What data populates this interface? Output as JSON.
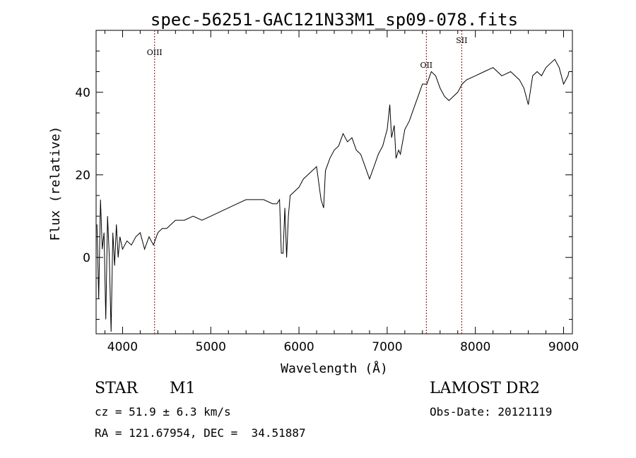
{
  "chart_data": {
    "type": "line",
    "title": "spec-56251-GAC121N33M1_sp09-078.fits",
    "xlabel": "Wavelength (Å)",
    "ylabel": "Flux (relative)",
    "xlim": [
      3700,
      9100
    ],
    "ylim": [
      -18.5,
      55
    ],
    "xticks": [
      4000,
      5000,
      6000,
      7000,
      8000,
      9000
    ],
    "yticks": [
      0,
      20,
      40
    ],
    "grid": false,
    "line_color": "#000000",
    "marker_color": "#8b0000",
    "lines": [
      {
        "label": "OIII",
        "x": 4363
      },
      {
        "label": "OII",
        "x": 7444
      },
      {
        "label": "SII",
        "x": 7845
      }
    ],
    "series": [
      {
        "x": [
          3710,
          3730,
          3750,
          3770,
          3790,
          3810,
          3830,
          3850,
          3870,
          3890,
          3910,
          3930,
          3950,
          3970,
          4000,
          4050,
          4100,
          4150,
          4200,
          4250,
          4300,
          4350,
          4400,
          4450,
          4500,
          4600,
          4700,
          4800,
          4900,
          5000,
          5100,
          5200,
          5300,
          5400,
          5500,
          5600,
          5700,
          5750,
          5780,
          5800,
          5820,
          5840,
          5860,
          5880,
          5900,
          5950,
          6000,
          6050,
          6100,
          6150,
          6200,
          6250,
          6280,
          6300,
          6350,
          6400,
          6450,
          6500,
          6550,
          6600,
          6650,
          6700,
          6750,
          6800,
          6850,
          6900,
          6950,
          7000,
          7030,
          7050,
          7080,
          7100,
          7130,
          7150,
          7200,
          7250,
          7300,
          7350,
          7400,
          7450,
          7500,
          7550,
          7600,
          7650,
          7700,
          7750,
          7800,
          7850,
          7900,
          8000,
          8100,
          8200,
          8300,
          8400,
          8450,
          8500,
          8550,
          8600,
          8650,
          8700,
          8750,
          8800,
          8850,
          8900,
          8950,
          9000,
          9050,
          9060
        ],
        "y": [
          8,
          -10,
          14,
          2,
          6,
          -15,
          10,
          0,
          -18,
          6,
          -2,
          8,
          0,
          5,
          2,
          4,
          3,
          5,
          6,
          2,
          5,
          3,
          6,
          7,
          7,
          9,
          9,
          10,
          9,
          10,
          11,
          12,
          13,
          14,
          14,
          14,
          13,
          13,
          14,
          1,
          1,
          12,
          0,
          10,
          15,
          16,
          17,
          19,
          20,
          21,
          22,
          14,
          12,
          21,
          24,
          26,
          27,
          30,
          28,
          29,
          26,
          25,
          22,
          19,
          22,
          25,
          27,
          31,
          37,
          29,
          32,
          24,
          26,
          25,
          31,
          33,
          36,
          39,
          42,
          42,
          45,
          44,
          41,
          39,
          38,
          39,
          40,
          42,
          43,
          44,
          45,
          46,
          44,
          45,
          44,
          43,
          41,
          37,
          44,
          45,
          44,
          46,
          47,
          48,
          46,
          42,
          44,
          45
        ]
      }
    ]
  },
  "info": {
    "object_class": "STAR",
    "subclass": "M1",
    "cz": "cz = 51.9 ± 6.3 km/s",
    "coords": "RA = 121.67954, DEC =  34.51887",
    "survey": "LAMOST DR2",
    "obs_date": "Obs-Date: 20121119"
  }
}
